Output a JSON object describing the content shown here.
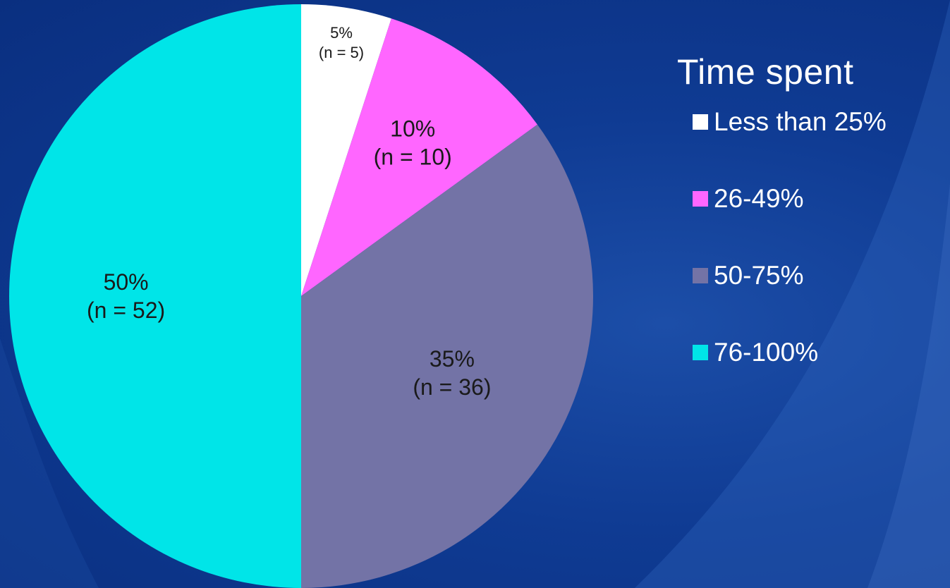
{
  "chart_data": {
    "type": "pie",
    "title": "",
    "legend_title": "Time spent",
    "legend_position": "right",
    "categories": [
      "Less than 25%",
      "26-49%",
      "50-75%",
      "76-100%"
    ],
    "values": [
      5,
      10,
      35,
      50
    ],
    "counts": [
      5,
      10,
      36,
      52
    ],
    "labels": [
      {
        "pct": "5%",
        "n": "(n = 5)"
      },
      {
        "pct": "10%",
        "n": "(n = 10)"
      },
      {
        "pct": "35%",
        "n": "(n = 36)"
      },
      {
        "pct": "50%",
        "n": "(n = 52)"
      }
    ],
    "colors": [
      "#ffffff",
      "#ff66ff",
      "#7373a6",
      "#00e5e8"
    ]
  }
}
